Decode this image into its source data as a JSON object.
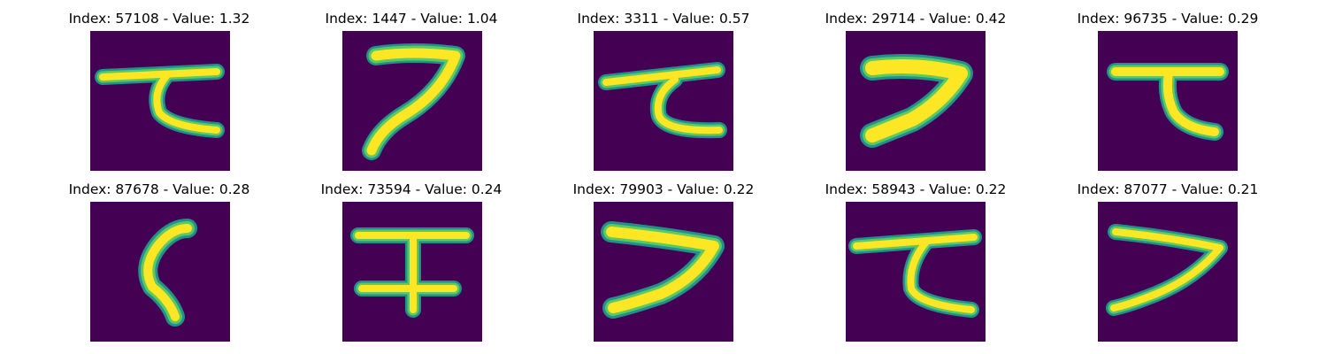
{
  "colors": {
    "background": "#440154",
    "stroke_edge": "#21918c",
    "stroke_mid": "#5ec962",
    "stroke_core": "#fde725"
  },
  "panels": [
    {
      "title": "Index: 57108 - Value: 1.32",
      "glyph": "Japanese katakana character"
    },
    {
      "title": "Index: 1447 - Value: 1.04",
      "glyph": "Japanese katakana character"
    },
    {
      "title": "Index: 3311 - Value: 0.57",
      "glyph": "Japanese katakana character"
    },
    {
      "title": "Index: 29714 - Value: 0.42",
      "glyph": "Japanese katakana character"
    },
    {
      "title": "Index: 96735 - Value: 0.29",
      "glyph": "Japanese katakana character"
    },
    {
      "title": "Index: 87678 - Value: 0.28",
      "glyph": "Japanese katakana character"
    },
    {
      "title": "Index: 73594 - Value: 0.24",
      "glyph": "Japanese katakana character"
    },
    {
      "title": "Index: 79903 - Value: 0.22",
      "glyph": "Japanese katakana character"
    },
    {
      "title": "Index: 58943 - Value: 0.22",
      "glyph": "Japanese katakana character"
    },
    {
      "title": "Index: 87077 - Value: 0.21",
      "glyph": "Japanese katakana character"
    }
  ]
}
